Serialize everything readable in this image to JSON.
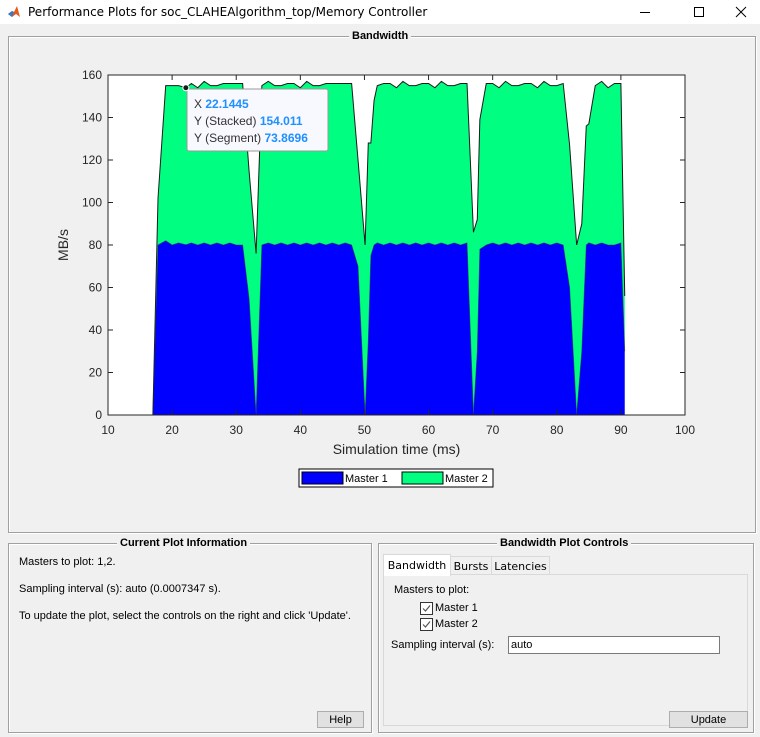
{
  "window": {
    "title": "Performance Plots for soc_CLAHEAlgorithm_top/Memory Controller",
    "controls": [
      "minimize",
      "maximize",
      "close"
    ]
  },
  "bandwidth_panel": {
    "title": "Bandwidth"
  },
  "chart_data": {
    "type": "area",
    "stacked": true,
    "title": "",
    "xlabel": "Simulation time (ms)",
    "ylabel": "MB/s",
    "xlim": [
      10,
      100
    ],
    "ylim": [
      0,
      160
    ],
    "xticks": [
      10,
      20,
      30,
      40,
      50,
      60,
      70,
      80,
      90,
      100
    ],
    "yticks": [
      0,
      20,
      40,
      60,
      80,
      100,
      120,
      140,
      160
    ],
    "grid": false,
    "legend": {
      "position": "south-outside",
      "entries": [
        "Master 1",
        "Master 2"
      ]
    },
    "colors": {
      "Master 1": "#0000ff",
      "Master 2": "#00ff80"
    },
    "x": [
      17.0,
      17.8,
      19,
      20,
      21,
      22.1445,
      23,
      24,
      25,
      26,
      27,
      28,
      29,
      30,
      31,
      32,
      33.1,
      34,
      35,
      36,
      37,
      38,
      39,
      40,
      41,
      42,
      43,
      44,
      45,
      46,
      47,
      48,
      49,
      50.1,
      50.6,
      51,
      51.5,
      52,
      53,
      54,
      55,
      56,
      57,
      58,
      59,
      60,
      61,
      62,
      63,
      64,
      65,
      66,
      67.0,
      67.6,
      68,
      69,
      70,
      71,
      72,
      73,
      74,
      75,
      76,
      77,
      78,
      79,
      80,
      81,
      82,
      83.1,
      83.9,
      84.6,
      85,
      86,
      87,
      88,
      89,
      90,
      90.6
    ],
    "series": [
      {
        "name": "Master 1",
        "values": [
          0,
          80,
          82,
          80,
          81,
          80.14,
          81,
          80,
          81,
          80,
          81,
          80,
          81,
          80,
          80,
          55,
          0,
          80,
          81,
          80,
          81,
          80,
          81,
          80,
          81,
          80,
          81,
          80,
          81,
          80,
          81,
          80,
          70,
          0,
          35,
          75,
          80,
          81,
          80,
          81,
          80,
          81,
          80,
          81,
          80,
          81,
          80,
          81,
          80,
          81,
          80,
          81,
          0,
          30,
          78,
          80,
          81,
          80,
          81,
          80,
          81,
          80,
          81,
          80,
          81,
          80,
          81,
          80,
          60,
          0,
          30,
          80,
          81,
          80,
          81,
          80,
          80,
          81,
          30
        ]
      },
      {
        "name": "Master 2",
        "values": [
          0,
          22,
          73,
          75,
          74,
          73.87,
          75,
          74,
          76,
          75,
          74,
          76,
          75,
          76,
          76,
          60,
          76,
          75,
          76,
          75,
          74,
          76,
          75,
          74,
          76,
          75,
          74,
          76,
          75,
          76,
          75,
          76,
          50,
          80,
          93,
          53,
          68,
          74,
          76,
          75,
          74,
          76,
          75,
          74,
          76,
          75,
          74,
          76,
          75,
          74,
          76,
          75,
          86,
          62,
          61,
          76,
          75,
          74,
          76,
          75,
          74,
          76,
          75,
          74,
          76,
          75,
          74,
          76,
          67,
          80,
          60,
          56,
          56,
          75,
          76,
          74,
          76,
          75,
          26
        ]
      }
    ],
    "datatip": {
      "x_label": "X",
      "x_value": "22.1445",
      "stacked_label": "Y (Stacked)",
      "stacked_value": "154.011",
      "segment_label": "Y (Segment)",
      "segment_value": "73.8696"
    }
  },
  "info_panel": {
    "title": "Current Plot Information",
    "lines": [
      "Masters to plot: 1,2.",
      "Sampling interval (s): auto (0.0007347 s).",
      "To update the plot, select the controls on the right and click 'Update'."
    ],
    "help_button": "Help"
  },
  "controls_panel": {
    "title": "Bandwidth Plot Controls",
    "tabs": [
      {
        "label": "Bandwidth",
        "active": true
      },
      {
        "label": "Bursts",
        "active": false
      },
      {
        "label": "Latencies",
        "active": false
      }
    ],
    "masters_label": "Masters to plot:",
    "masters": [
      {
        "label": "Master 1",
        "checked": true
      },
      {
        "label": "Master 2",
        "checked": true
      }
    ],
    "sampling_label": "Sampling interval (s):",
    "sampling_value": "auto",
    "update_button": "Update"
  }
}
